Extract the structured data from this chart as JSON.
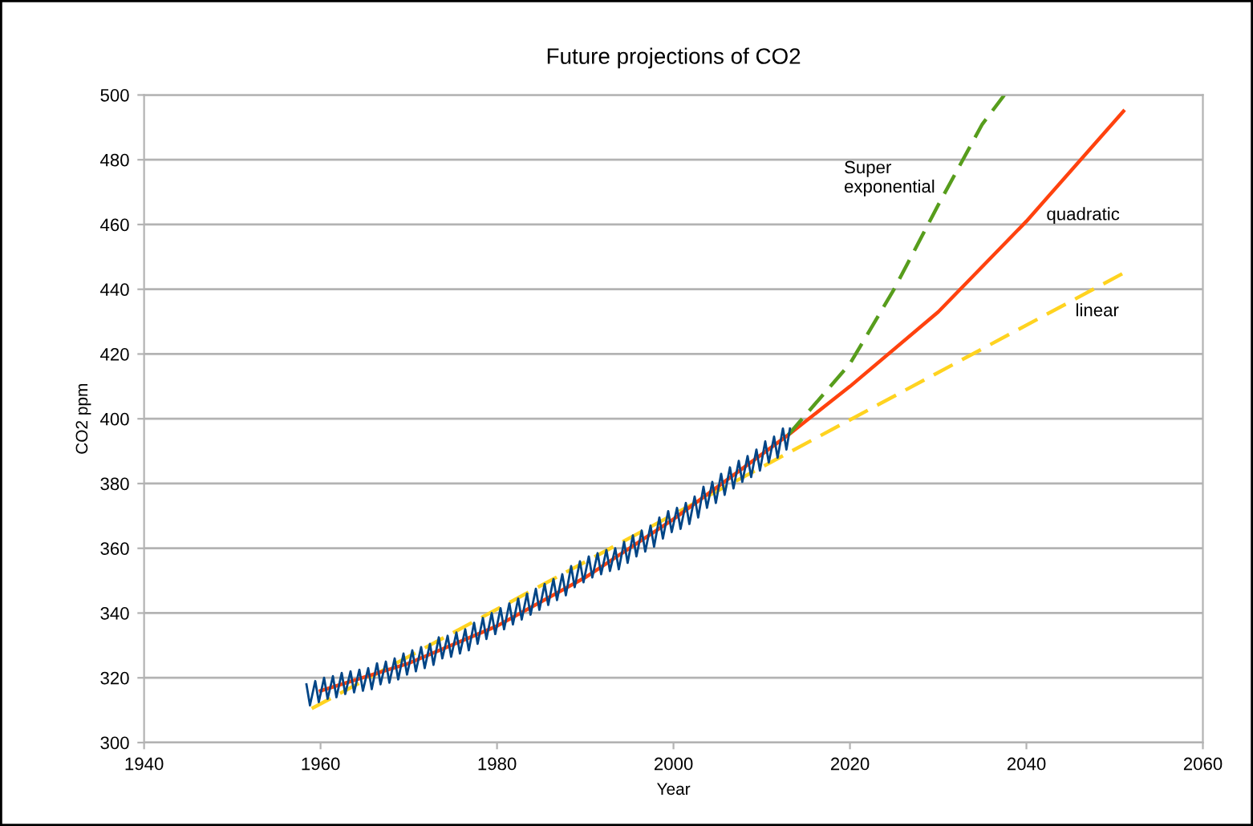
{
  "chart_data": {
    "type": "line",
    "title": "Future projections of CO2",
    "xlabel": "Year",
    "ylabel": "CO2 ppm",
    "xlim": [
      1940,
      2060
    ],
    "xticks": [
      1940,
      1960,
      1980,
      2000,
      2020,
      2040,
      2060
    ],
    "ylim": [
      300,
      500
    ],
    "yticks": [
      300,
      320,
      340,
      360,
      380,
      400,
      420,
      440,
      460,
      480,
      500
    ],
    "grid": "y",
    "marker": "none",
    "series": [
      {
        "name": "linear",
        "color": "#ffd320",
        "line_style": "dashed",
        "x": [
          1959,
          2051
        ],
        "values": [
          310.5,
          445
        ]
      },
      {
        "name": "quadratic",
        "color": "#ff420e",
        "line_style": "solid",
        "x": [
          1960,
          1970,
          1980,
          1990,
          2000,
          2013,
          2020,
          2030,
          2040,
          2051
        ],
        "values": [
          316,
          324.5,
          336,
          351,
          369,
          395,
          410,
          433,
          461,
          495
        ]
      },
      {
        "name": "Super\nexponential",
        "color": "#579d1c",
        "line_style": "dashed",
        "x": [
          2013,
          2020,
          2025,
          2030,
          2035,
          2037.5
        ],
        "values": [
          395,
          417,
          440,
          466,
          491,
          500
        ]
      },
      {
        "color": "#004586",
        "line_style": "solid",
        "x": [
          1958.4,
          1958.8,
          1959.4,
          1959.8,
          1960.4,
          1960.8,
          1961.4,
          1961.8,
          1962.4,
          1962.8,
          1963.4,
          1963.8,
          1964.4,
          1964.8,
          1965.4,
          1965.8,
          1966.4,
          1966.8,
          1967.4,
          1967.8,
          1968.4,
          1968.8,
          1969.4,
          1969.8,
          1970.4,
          1970.8,
          1971.4,
          1971.8,
          1972.4,
          1972.8,
          1973.4,
          1973.8,
          1974.4,
          1974.8,
          1975.4,
          1975.8,
          1976.4,
          1976.8,
          1977.4,
          1977.8,
          1978.4,
          1978.8,
          1979.4,
          1979.8,
          1980.4,
          1980.8,
          1981.4,
          1981.8,
          1982.4,
          1982.8,
          1983.4,
          1983.8,
          1984.4,
          1984.8,
          1985.4,
          1985.8,
          1986.4,
          1986.8,
          1987.4,
          1987.8,
          1988.4,
          1988.8,
          1989.4,
          1989.8,
          1990.4,
          1990.8,
          1991.4,
          1991.8,
          1992.4,
          1992.8,
          1993.4,
          1993.8,
          1994.4,
          1994.8,
          1995.4,
          1995.8,
          1996.4,
          1996.8,
          1997.4,
          1997.8,
          1998.4,
          1998.8,
          1999.4,
          1999.8,
          2000.4,
          2000.8,
          2001.4,
          2001.8,
          2002.4,
          2002.8,
          2003.4,
          2003.8,
          2004.4,
          2004.8,
          2005.4,
          2005.8,
          2006.4,
          2006.8,
          2007.4,
          2007.8,
          2008.4,
          2008.8,
          2009.4,
          2009.8,
          2010.4,
          2010.8,
          2011.4,
          2011.8,
          2012.4,
          2012.8,
          2013.2
        ],
        "values": [
          318,
          311.5,
          319,
          312.5,
          320,
          313.5,
          320.5,
          314,
          321.5,
          315,
          322,
          315.5,
          322.5,
          316,
          323,
          316.5,
          324.5,
          318,
          325,
          318.5,
          326,
          319.5,
          327.5,
          321,
          328.5,
          322,
          329.5,
          323,
          330.5,
          324,
          332.5,
          326,
          333,
          326.5,
          334,
          327.5,
          335,
          328.5,
          337,
          330.5,
          338.5,
          332,
          340,
          333.5,
          341.5,
          335,
          343,
          336.5,
          344.5,
          338,
          346,
          339.5,
          347.5,
          341,
          349,
          342.5,
          350.5,
          344,
          352,
          345.5,
          354.5,
          348,
          356,
          349.5,
          357.5,
          351,
          358.5,
          352,
          359.5,
          353,
          360,
          353.5,
          362,
          355.5,
          364,
          357.5,
          365.5,
          359,
          367,
          360.5,
          369.5,
          363,
          371.5,
          365,
          372.5,
          366,
          374,
          367.5,
          376,
          369.5,
          379,
          372.5,
          380.5,
          374,
          383,
          376.5,
          385,
          378.5,
          387,
          380.5,
          388.5,
          382,
          390.5,
          384,
          393,
          386.5,
          394.5,
          388,
          397,
          390.5,
          397
        ]
      }
    ]
  }
}
